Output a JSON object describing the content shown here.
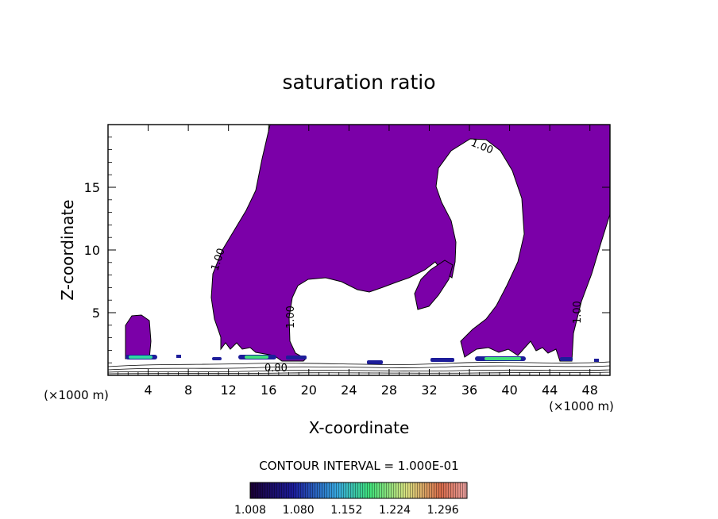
{
  "chart_data": {
    "type": "contour",
    "title": "saturation ratio",
    "xlabel": "X-coordinate",
    "ylabel": "Z-coordinate",
    "x_unit": "(×1000 m)",
    "x_unit_right": "(×1000 m)",
    "xlim": [
      0,
      50
    ],
    "ylim": [
      0,
      20
    ],
    "xticks": [
      4,
      8,
      12,
      16,
      20,
      24,
      28,
      32,
      36,
      40,
      44,
      48
    ],
    "yticks": [
      5,
      10,
      15
    ],
    "contour_interval_text": "CONTOUR INTERVAL = 1.000E-01",
    "contour_labels": [
      {
        "text": "1.00",
        "x": 11.5,
        "y": 9.2
      },
      {
        "text": "1.00",
        "x": 38.5,
        "y": 18.0
      },
      {
        "text": "1.00",
        "x": 18.6,
        "y": 4.4
      },
      {
        "text": "1.00",
        "x": 46.4,
        "y": 4.9
      },
      {
        "text": "0.80",
        "x": 17.2,
        "y": 0.5
      }
    ],
    "colorbar": {
      "ticks": [
        "1.008",
        "1.080",
        "1.152",
        "1.224",
        "1.296"
      ],
      "min": 1.008,
      "max": 1.332
    },
    "colors": {
      "fill": "#7b00a8",
      "contour": "#000000"
    }
  }
}
